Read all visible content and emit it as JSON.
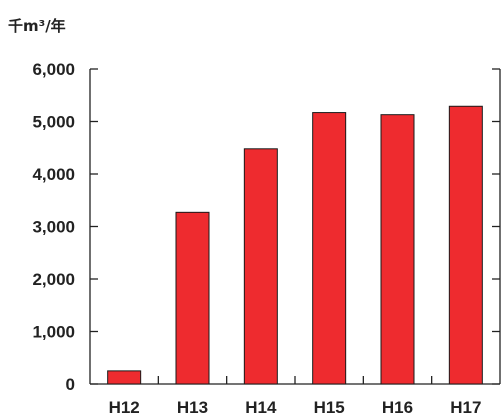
{
  "chart_data": {
    "type": "bar",
    "unit_label": "千m³/年",
    "categories": [
      "H12",
      "H13",
      "H14",
      "H15",
      "H16",
      "H17"
    ],
    "values": [
      250,
      3270,
      4480,
      5170,
      5130,
      5290
    ],
    "y_ticks": [
      0,
      1000,
      2000,
      3000,
      4000,
      5000,
      6000
    ],
    "y_tick_labels": [
      "0",
      "1,000",
      "2,000",
      "3,000",
      "4,000",
      "5,000",
      "6,000"
    ],
    "ylim": [
      0,
      6000
    ],
    "grid": false,
    "colors": {
      "bar_fill": "#ee2b2f",
      "bar_stroke": "#1a1a1a",
      "axis": "#222222"
    }
  }
}
